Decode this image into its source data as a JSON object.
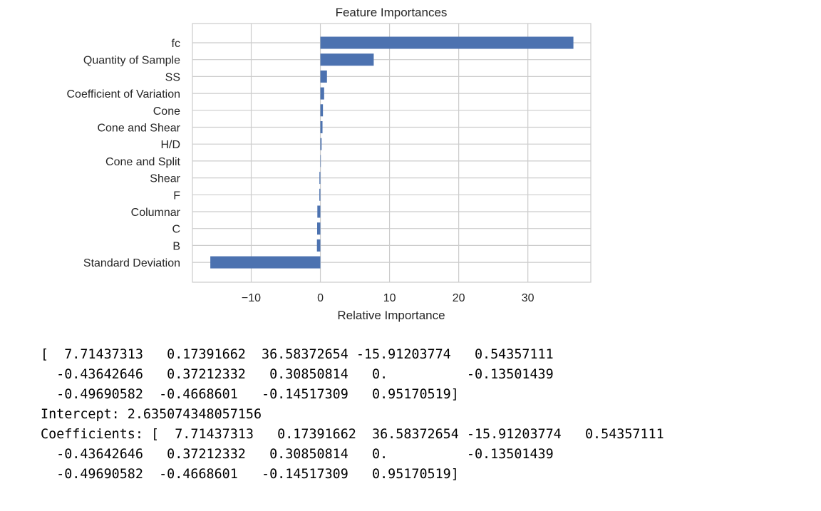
{
  "chart_data": {
    "type": "bar",
    "orientation": "horizontal",
    "title": "Feature Importances",
    "xlabel": "Relative Importance",
    "ylabel": "",
    "categories": [
      "fc",
      "Quantity of Sample",
      "SS",
      "Coefficient of Variation",
      "Cone",
      "Cone and Shear",
      "H/D",
      "Cone and Split",
      "Shear",
      "F",
      "Columnar",
      "C",
      "B",
      "Standard Deviation"
    ],
    "values": [
      36.58372654,
      7.71437313,
      0.95170519,
      0.54357111,
      0.37212332,
      0.30850814,
      0.17391662,
      0.0,
      -0.13501439,
      -0.14517309,
      -0.43642646,
      -0.4668601,
      -0.49690582,
      -15.91203774
    ],
    "xlim": [
      -18.5,
      39.1
    ],
    "xticks": [
      -10,
      0,
      10,
      20,
      30
    ],
    "xtick_labels": [
      "−10",
      "0",
      "10",
      "20",
      "30"
    ],
    "grid": true,
    "bar_color": "#4c72b0",
    "grid_color": "#cccccc"
  },
  "output": {
    "lines": [
      "[  7.71437313   0.17391662  36.58372654 -15.91203774   0.54357111",
      "  -0.43642646   0.37212332   0.30850814   0.          -0.13501439",
      "  -0.49690582  -0.4668601   -0.14517309   0.95170519]",
      "Intercept: 2.635074348057156",
      "Coefficients: [  7.71437313   0.17391662  36.58372654 -15.91203774   0.54357111",
      "  -0.43642646   0.37212332   0.30850814   0.          -0.13501439",
      "  -0.49690582  -0.4668601   -0.14517309   0.95170519]"
    ]
  }
}
